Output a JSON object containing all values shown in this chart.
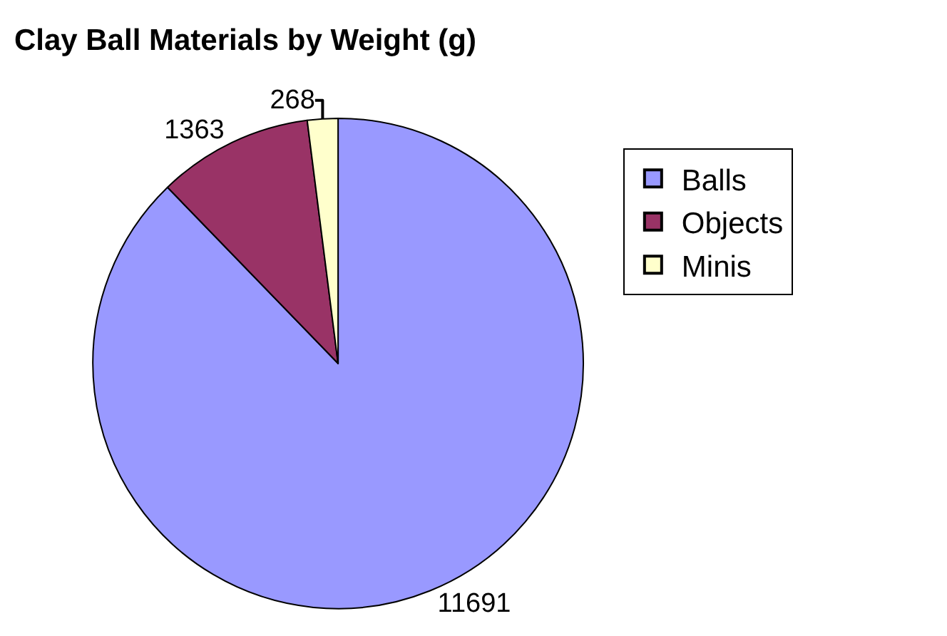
{
  "chart_data": {
    "type": "pie",
    "title": "Clay Ball Materials by Weight (g)",
    "categories": [
      "Balls",
      "Objects",
      "Minis"
    ],
    "values": [
      11691,
      1363,
      268
    ],
    "colors": [
      "#9999ff",
      "#993366",
      "#ffffcc"
    ],
    "data_labels": true,
    "legend": "right"
  }
}
